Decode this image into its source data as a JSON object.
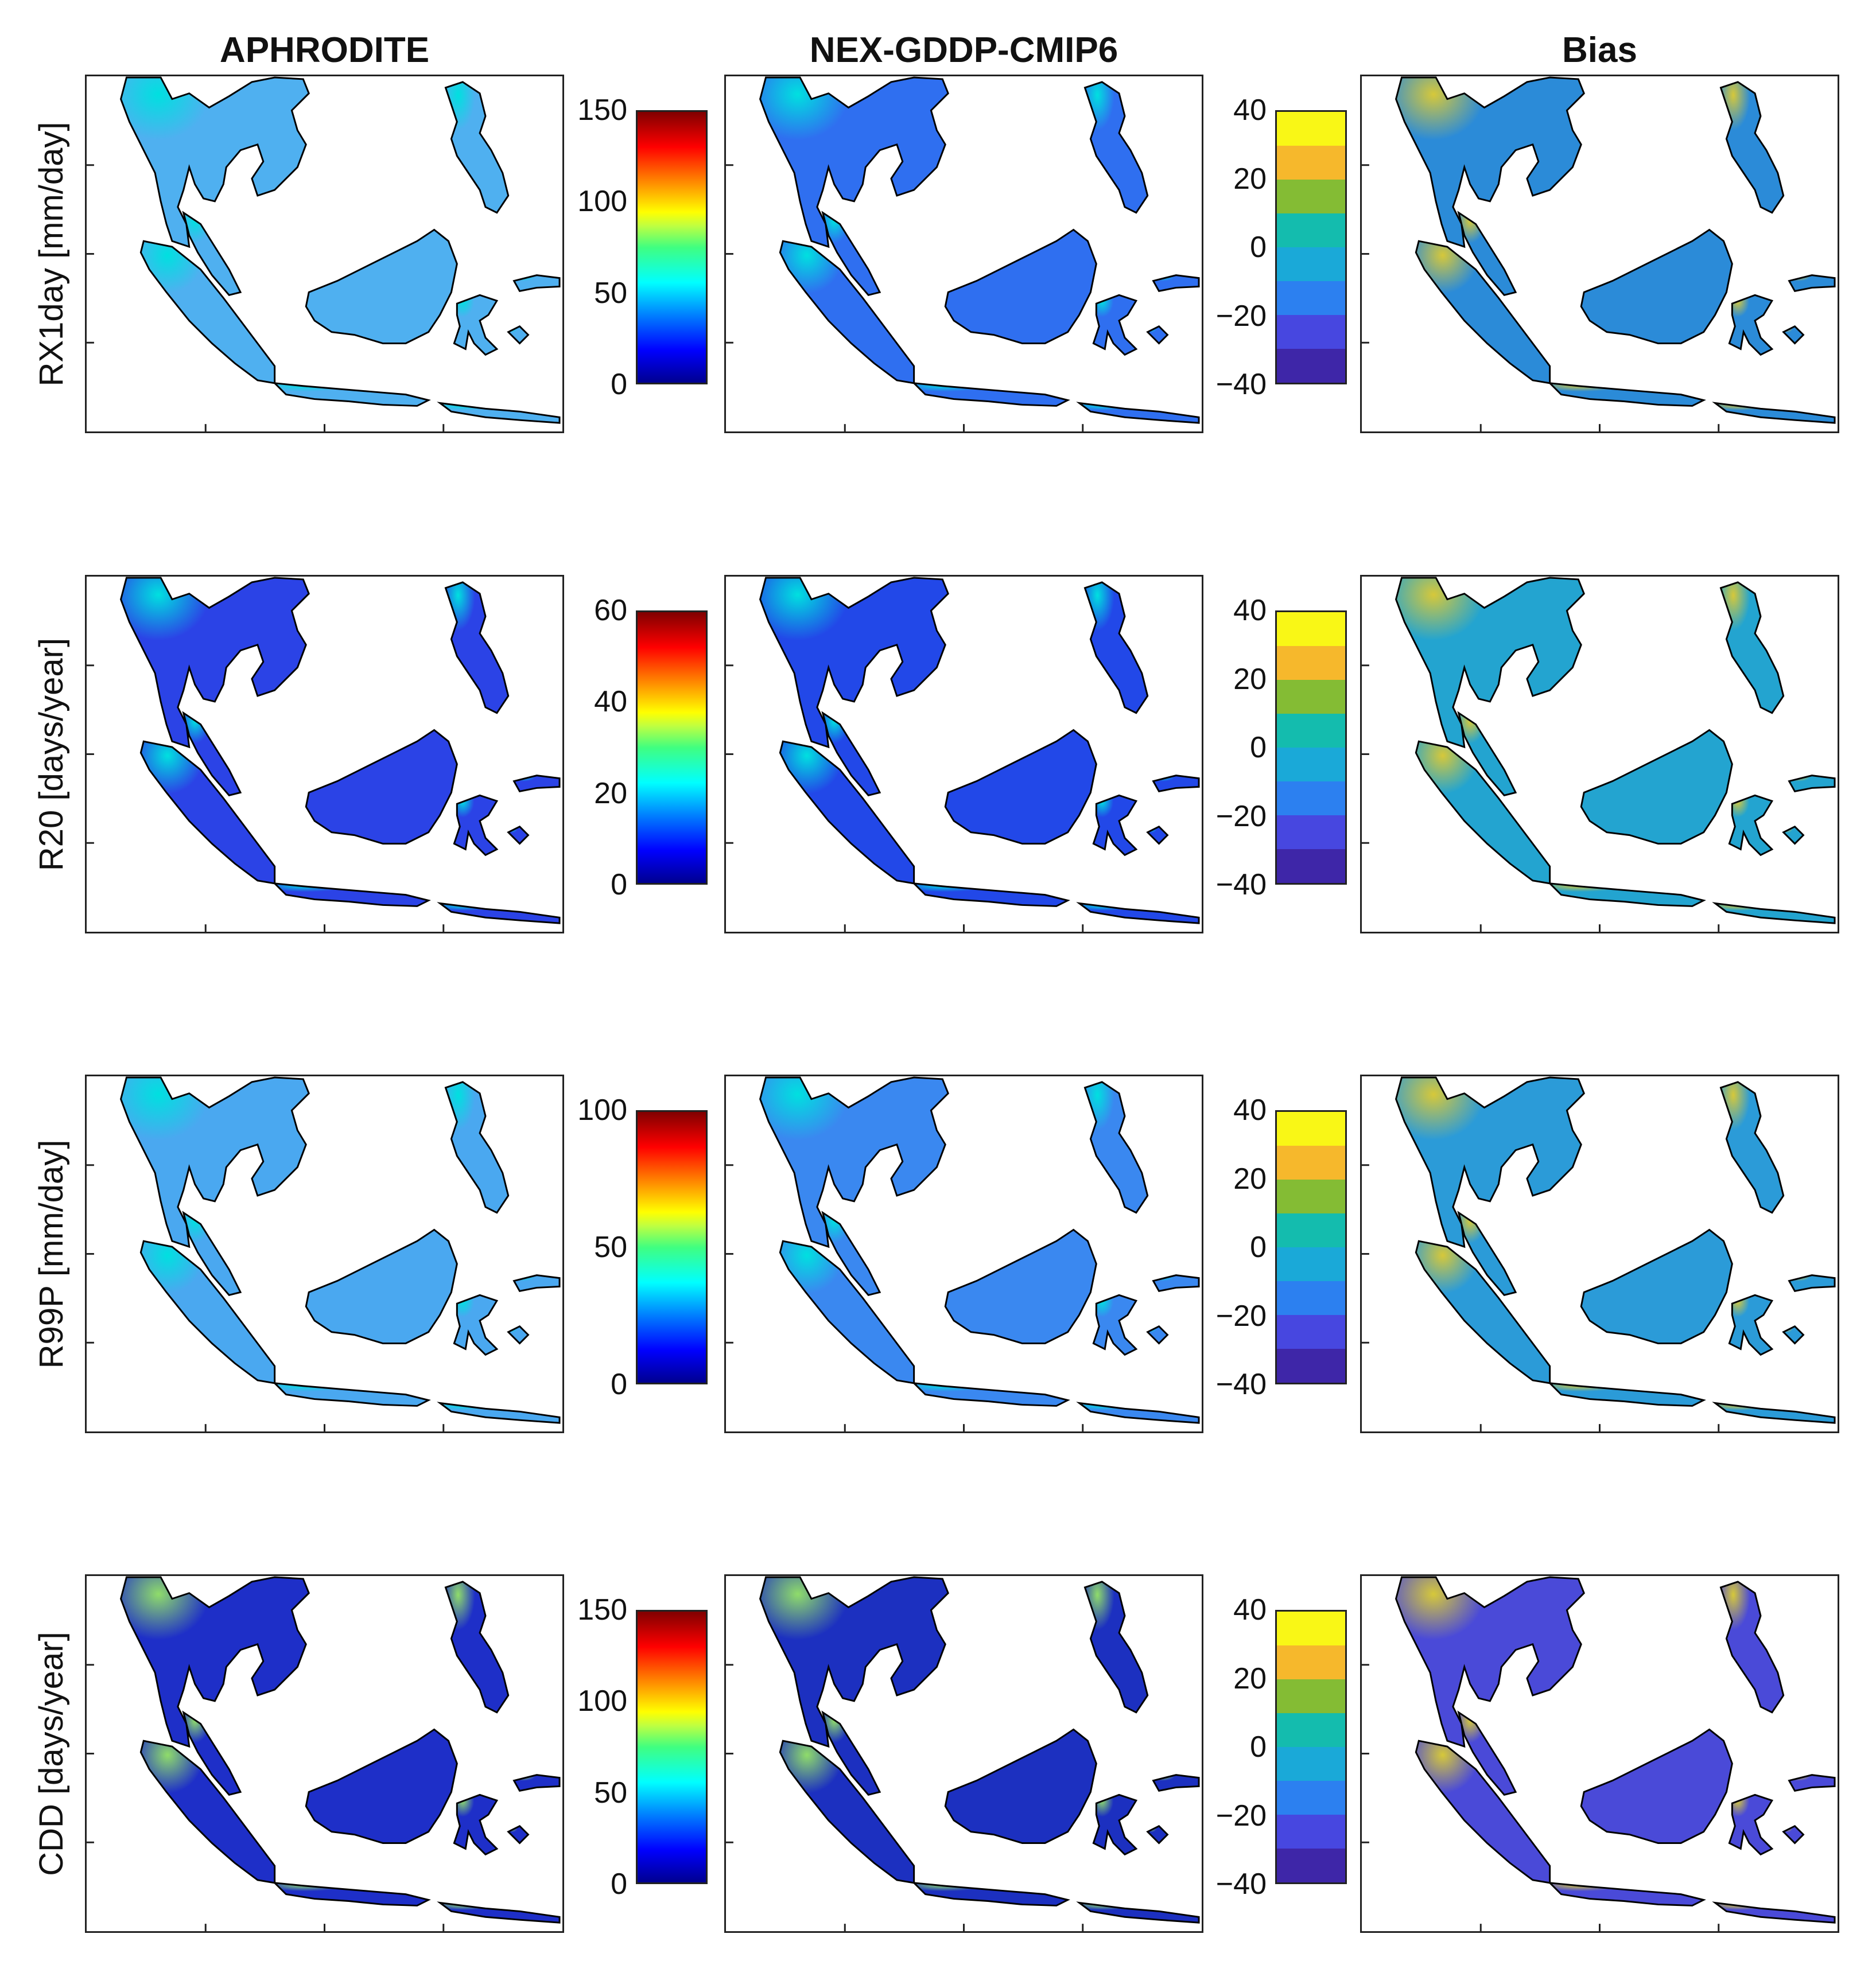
{
  "columns": [
    "APHRODITE",
    "NEX-GDDP-CMIP6",
    "Bias"
  ],
  "rows": [
    {
      "label": "RX1day [mm/day]",
      "obs_ticks": [
        "150",
        "100",
        "50",
        "0"
      ],
      "bias_ticks": [
        "40",
        "20",
        "0",
        "−20",
        "−40"
      ]
    },
    {
      "label": "R20 [days/year]",
      "obs_ticks": [
        "60",
        "40",
        "20",
        "0"
      ],
      "bias_ticks": [
        "40",
        "20",
        "0",
        "−20",
        "−40"
      ]
    },
    {
      "label": "R99P [mm/day]",
      "obs_ticks": [
        "100",
        "50",
        "0"
      ],
      "bias_ticks": [
        "40",
        "20",
        "0",
        "−20",
        "−40"
      ]
    },
    {
      "label": "CDD [days/year]",
      "obs_ticks": [
        "150",
        "100",
        "50",
        "0"
      ],
      "bias_ticks": [
        "40",
        "20",
        "0",
        "−20",
        "−40"
      ]
    }
  ],
  "colorbars": {
    "observed": {
      "colormap": "jet",
      "ranges": [
        [
          0,
          150
        ],
        [
          0,
          60
        ],
        [
          0,
          100
        ],
        [
          0,
          150
        ]
      ]
    },
    "bias": {
      "colormap": "parula",
      "levels": [
        -40,
        -30,
        -20,
        -10,
        0,
        10,
        20,
        30,
        40
      ]
    }
  },
  "land_fill": {
    "APHRODITE": [
      "#4fb0f0",
      "#2b43e6",
      "#4aa8f0",
      "#1e2fc8"
    ],
    "NEX-GDDP-CMIP6": [
      "#2f6ff0",
      "#2248e8",
      "#3a88f0",
      "#1c30c0"
    ],
    "Bias": [
      "#2b8bd8",
      "#23a4d0",
      "#2b9bd8",
      "#4a4ad8"
    ]
  }
}
